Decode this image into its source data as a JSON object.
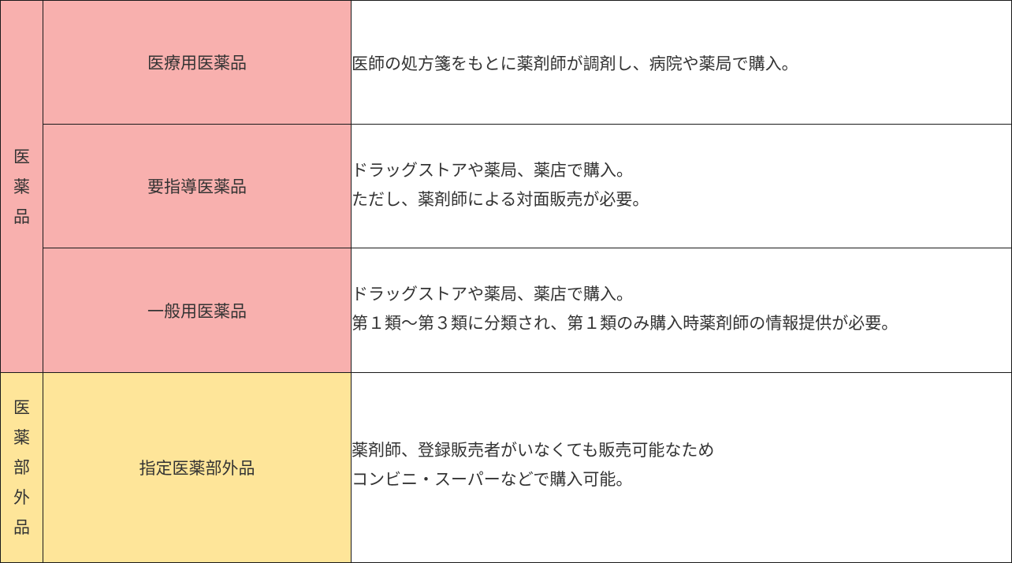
{
  "categories": [
    {
      "label": "医薬品",
      "color": "#f8b0ae",
      "items": [
        {
          "name": "医療用医薬品",
          "lines": [
            "医師の処方箋をもとに薬剤師が調剤し、病院や薬局で購入。"
          ]
        },
        {
          "name": "要指導医薬品",
          "lines": [
            "ドラッグストアや薬局、薬店で購入。",
            "ただし、薬剤師による対面販売が必要。"
          ]
        },
        {
          "name": "一般用医薬品",
          "lines": [
            "ドラッグストアや薬局、薬店で購入。",
            "第１類〜第３類に分類され、第１類のみ購入時薬剤師の情報提供が必要。"
          ]
        }
      ]
    },
    {
      "label": "医薬部外品",
      "color": "#fee599",
      "items": [
        {
          "name": "指定医薬部外品",
          "lines": [
            "薬剤師、登録販売者がいなくても販売可能なため",
            "コンビニ・スーパーなどで購入可能。"
          ]
        }
      ]
    }
  ]
}
